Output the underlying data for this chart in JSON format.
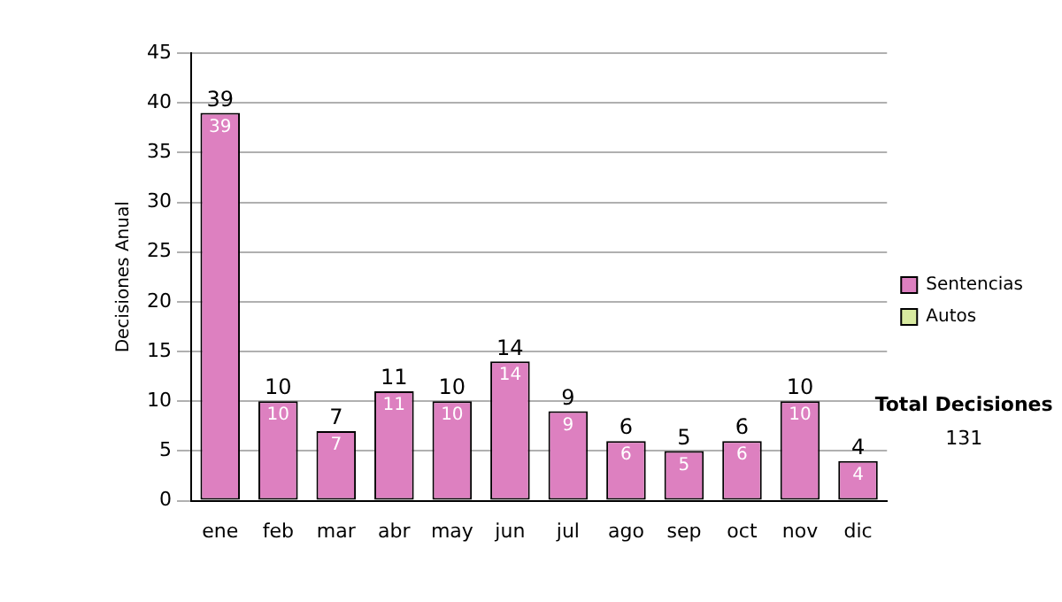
{
  "chart_data": {
    "type": "bar",
    "ylabel": "Decisiones Anual",
    "categories": [
      "ene",
      "feb",
      "mar",
      "abr",
      "may",
      "jun",
      "jul",
      "ago",
      "sep",
      "oct",
      "nov",
      "dic"
    ],
    "series": [
      {
        "name": "Sentencias",
        "color": "#dd80c0",
        "values": [
          39,
          10,
          7,
          11,
          10,
          14,
          9,
          6,
          5,
          6,
          10,
          4
        ],
        "value_labels": [
          "39",
          "10",
          "7",
          "11",
          "10",
          "14",
          "9",
          "6",
          "5",
          "6",
          "10",
          "4"
        ]
      },
      {
        "name": "Autos",
        "color": "#d8eaa0",
        "values": [
          0,
          0,
          0,
          0,
          0,
          0,
          0,
          0,
          0,
          0,
          0,
          0
        ]
      }
    ],
    "stacked": true,
    "totals": [
      "39",
      "10",
      "7",
      "11",
      "10",
      "14",
      "9",
      "6",
      "5",
      "6",
      "10",
      "4"
    ],
    "ylim": [
      0,
      45
    ],
    "yticks": [
      0,
      5,
      10,
      15,
      20,
      25,
      30,
      35,
      40,
      45
    ],
    "grid": "y",
    "legend": "right",
    "annotations": [
      "Total Decisiones",
      "131"
    ]
  }
}
